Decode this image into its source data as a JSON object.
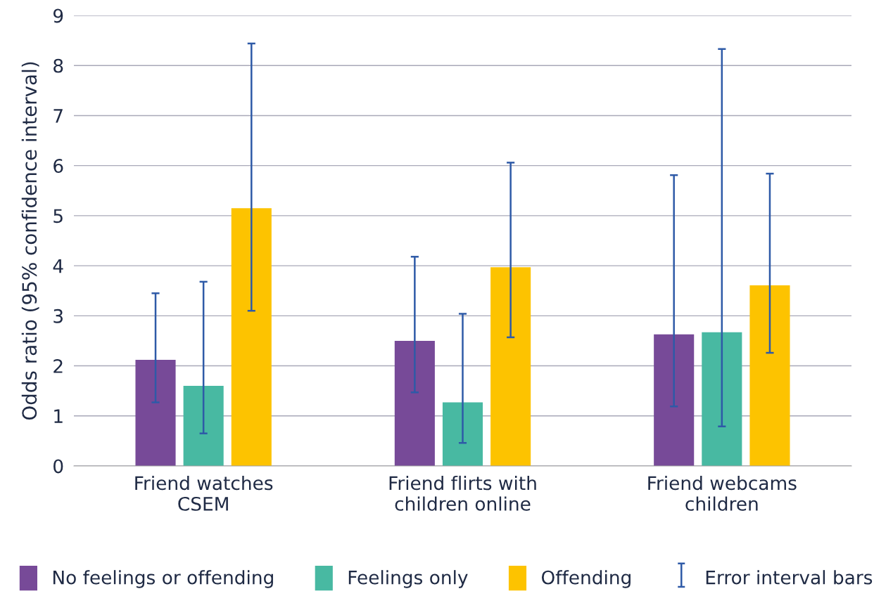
{
  "chart_data": {
    "type": "bar",
    "ylabel": "Odds ratio (95% confidence interval)",
    "categories": [
      "Friend watches\nCSEM",
      "Friend flirts with\nchildren online",
      "Friend webcams\nchildren"
    ],
    "series": [
      {
        "name": "No feelings or offending",
        "color": "#774a98",
        "values": [
          2.12,
          2.5,
          2.63
        ],
        "errors": [
          [
            1.27,
            3.45
          ],
          [
            1.47,
            4.18
          ],
          [
            1.19,
            5.81
          ]
        ]
      },
      {
        "name": "Feelings only",
        "color": "#48b9a2",
        "values": [
          1.6,
          1.27,
          2.67
        ],
        "errors": [
          [
            0.65,
            3.68
          ],
          [
            0.46,
            3.04
          ],
          [
            0.79,
            8.33
          ]
        ]
      },
      {
        "name": "Offending",
        "color": "#fdc300",
        "values": [
          5.15,
          3.97,
          3.61
        ],
        "errors": [
          [
            3.1,
            8.44
          ],
          [
            2.57,
            6.06
          ],
          [
            2.26,
            5.84
          ]
        ]
      }
    ],
    "annotations": [
      "Error interval bars"
    ],
    "ylim": [
      0,
      9
    ],
    "yticks": [
      0,
      1,
      2,
      3,
      4,
      5,
      6,
      7,
      8,
      9
    ],
    "grid": "y",
    "legend": "bottom"
  }
}
